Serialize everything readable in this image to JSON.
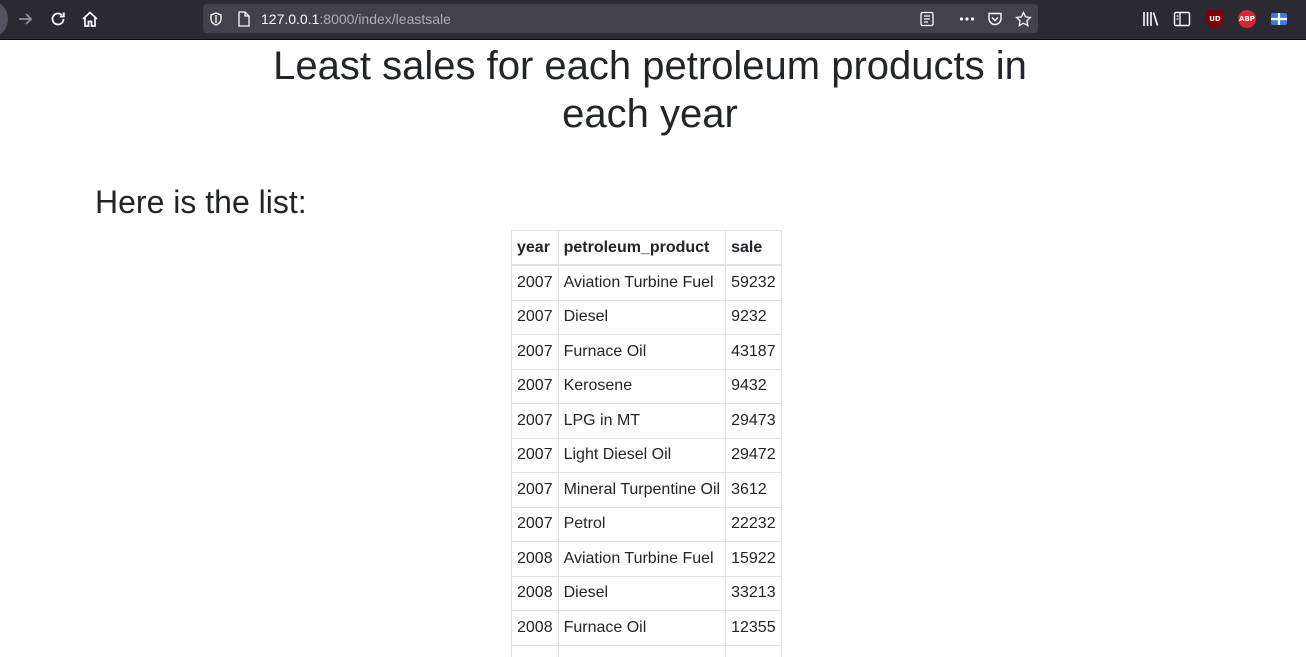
{
  "browser": {
    "url_host": "127.0.0.1",
    "url_rest": ":8000/index/leastsale",
    "extensions": [
      {
        "name": "uBlock Origin",
        "label": "UD",
        "color": "#800000"
      },
      {
        "name": "Adblock Plus",
        "label": "ABP",
        "color": "#d8282f"
      }
    ]
  },
  "page": {
    "title": "Least sales for each petroleum products in each year",
    "list_heading": "Here is the list:",
    "table": {
      "columns": [
        "year",
        "petroleum_product",
        "sale"
      ],
      "rows": [
        [
          "2007",
          "Aviation Turbine Fuel",
          "59232"
        ],
        [
          "2007",
          "Diesel",
          "9232"
        ],
        [
          "2007",
          "Furnace Oil",
          "43187"
        ],
        [
          "2007",
          "Kerosene",
          "9432"
        ],
        [
          "2007",
          "LPG in MT",
          "29473"
        ],
        [
          "2007",
          "Light Diesel Oil",
          "29472"
        ],
        [
          "2007",
          "Mineral Turpentine Oil",
          "3612"
        ],
        [
          "2007",
          "Petrol",
          "22232"
        ],
        [
          "2008",
          "Aviation Turbine Fuel",
          "15922"
        ],
        [
          "2008",
          "Diesel",
          "33213"
        ],
        [
          "2008",
          "Furnace Oil",
          "12355"
        ],
        [
          "",
          "",
          ""
        ]
      ]
    }
  }
}
